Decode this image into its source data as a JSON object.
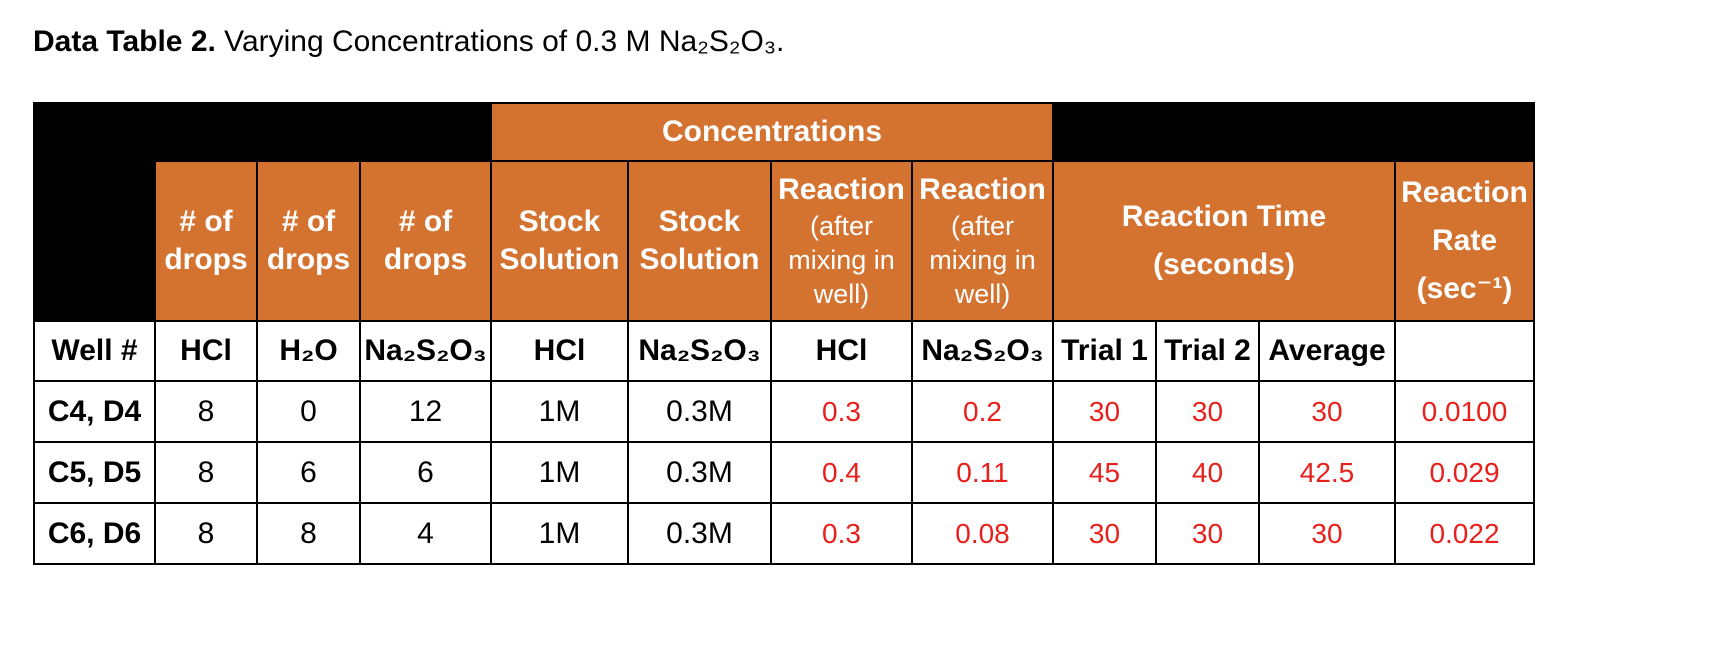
{
  "caption": {
    "bold": "Data Table 2.",
    "text": " Varying Concentrations of 0.3 M Na₂S₂O₃."
  },
  "table": {
    "group_header": "Concentrations",
    "headers": {
      "drops_hcl": [
        "# of",
        "drops"
      ],
      "drops_h2o": [
        "# of",
        "drops"
      ],
      "drops_na": [
        "# of",
        "drops"
      ],
      "stock_hcl": [
        "Stock",
        "Solution"
      ],
      "stock_na": [
        "Stock",
        "Solution"
      ],
      "react_hcl": [
        "Reaction",
        "(after",
        "mixing in",
        "well)"
      ],
      "react_na": [
        "Reaction",
        "(after",
        "mixing in",
        "well)"
      ],
      "reaction_time": [
        "Reaction Time",
        "(seconds)"
      ],
      "reaction_rate": [
        "Reaction",
        "Rate",
        "(sec⁻¹)"
      ]
    },
    "subheaders": [
      "Well #",
      "HCl",
      "H₂O",
      "Na₂S₂O₃",
      "HCl",
      "Na₂S₂O₃",
      "HCl",
      "Na₂S₂O₃",
      "Trial 1",
      "Trial 2",
      "Average",
      ""
    ],
    "rows": [
      [
        "C4, D4",
        "8",
        "0",
        "12",
        "1M",
        "0.3M",
        "0.3",
        "0.2",
        "30",
        "30",
        "30",
        "0.0100"
      ],
      [
        "C5, D5",
        "8",
        "6",
        "6",
        "1M",
        "0.3M",
        "0.4",
        "0.11",
        "45",
        "40",
        "42.5",
        "0.029"
      ],
      [
        "C6, D6",
        "8",
        "8",
        "4",
        "1M",
        "0.3M",
        "0.3",
        "0.08",
        "30",
        "30",
        "30",
        "0.022"
      ]
    ],
    "colors": {
      "header_orange": "#d4722f",
      "header_black": "#000000",
      "entered_value_red": "#e8201c"
    }
  }
}
